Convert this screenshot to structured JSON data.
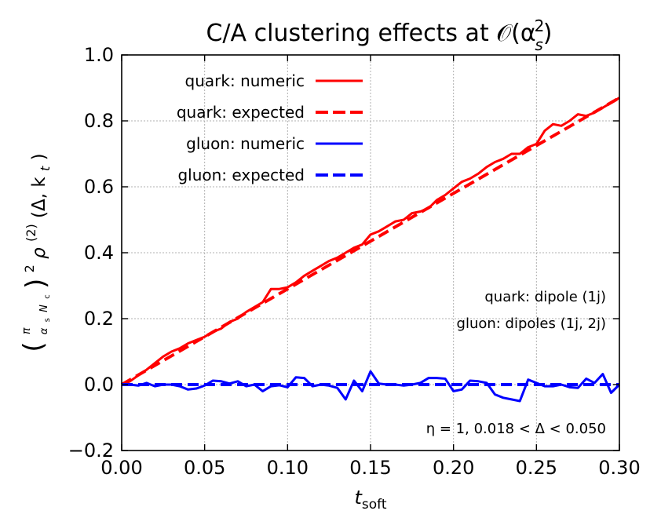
{
  "chart_data": {
    "type": "line",
    "title": "C/A clustering effects at 𝒪(α",
    "title_sup": "2",
    "title_sub": "s",
    "title_end": ")",
    "xlabel": "t",
    "xlabel_sub": "soft",
    "ylabel_main": "ρ",
    "ylabel_tail": "(Δ, k",
    "ylabel_sub": "t",
    "xlim": [
      0.0,
      0.3
    ],
    "ylim": [
      -0.2,
      1.0
    ],
    "xticks": [
      0.0,
      0.05,
      0.1,
      0.15,
      0.2,
      0.25,
      0.3
    ],
    "xtick_labels": [
      "0.00",
      "0.05",
      "0.10",
      "0.15",
      "0.20",
      "0.25",
      "0.30"
    ],
    "yticks": [
      -0.2,
      0.0,
      0.2,
      0.4,
      0.6,
      0.8,
      1.0
    ],
    "ytick_labels": [
      "−0.2",
      "0.0",
      "0.2",
      "0.4",
      "0.6",
      "0.8",
      "1.0"
    ],
    "grid": true,
    "legend_position": "top-left",
    "annotations": {
      "quark_dipole": "quark: dipole (1j)",
      "gluon_dipoles": "gluon: dipoles (1j, 2j)",
      "cut": "η = 1, 0.018 < Δ <  0.050"
    },
    "series": [
      {
        "name": "quark: numeric",
        "color": "#ff0000",
        "dash": "solid",
        "x": [
          0.0,
          0.005,
          0.01,
          0.015,
          0.02,
          0.025,
          0.03,
          0.035,
          0.04,
          0.045,
          0.05,
          0.055,
          0.06,
          0.065,
          0.07,
          0.075,
          0.08,
          0.085,
          0.09,
          0.095,
          0.1,
          0.105,
          0.11,
          0.115,
          0.12,
          0.125,
          0.13,
          0.135,
          0.14,
          0.145,
          0.15,
          0.155,
          0.16,
          0.165,
          0.17,
          0.175,
          0.18,
          0.185,
          0.19,
          0.195,
          0.2,
          0.205,
          0.21,
          0.215,
          0.22,
          0.225,
          0.23,
          0.235,
          0.24,
          0.245,
          0.25,
          0.255,
          0.26,
          0.265,
          0.27,
          0.275,
          0.28,
          0.285,
          0.29,
          0.295,
          0.3
        ],
        "y": [
          0.0,
          0.01,
          0.028,
          0.045,
          0.065,
          0.085,
          0.1,
          0.11,
          0.125,
          0.135,
          0.145,
          0.16,
          0.17,
          0.19,
          0.2,
          0.22,
          0.235,
          0.25,
          0.29,
          0.29,
          0.295,
          0.31,
          0.33,
          0.345,
          0.36,
          0.375,
          0.385,
          0.4,
          0.415,
          0.425,
          0.455,
          0.465,
          0.48,
          0.495,
          0.5,
          0.52,
          0.525,
          0.535,
          0.56,
          0.575,
          0.595,
          0.615,
          0.625,
          0.64,
          0.66,
          0.675,
          0.685,
          0.7,
          0.7,
          0.72,
          0.73,
          0.77,
          0.79,
          0.785,
          0.8,
          0.82,
          0.815,
          0.825,
          0.84,
          0.855,
          0.87
        ]
      },
      {
        "name": "quark: expected",
        "color": "#ff0000",
        "dash": "dashed",
        "x": [
          0.0,
          0.3
        ],
        "y": [
          0.0,
          0.87
        ]
      },
      {
        "name": "gluon: numeric",
        "color": "#0000ff",
        "dash": "solid",
        "x": [
          0.0,
          0.005,
          0.01,
          0.015,
          0.02,
          0.025,
          0.03,
          0.035,
          0.04,
          0.045,
          0.05,
          0.055,
          0.06,
          0.065,
          0.07,
          0.075,
          0.08,
          0.085,
          0.09,
          0.095,
          0.1,
          0.105,
          0.11,
          0.115,
          0.12,
          0.125,
          0.13,
          0.135,
          0.14,
          0.145,
          0.15,
          0.155,
          0.16,
          0.165,
          0.17,
          0.175,
          0.18,
          0.185,
          0.19,
          0.195,
          0.2,
          0.205,
          0.21,
          0.215,
          0.22,
          0.225,
          0.23,
          0.235,
          0.24,
          0.245,
          0.25,
          0.255,
          0.26,
          0.265,
          0.27,
          0.275,
          0.28,
          0.285,
          0.29,
          0.295,
          0.3
        ],
        "y": [
          0.0,
          0.0,
          -0.003,
          0.005,
          -0.005,
          0.0,
          0.0,
          -0.005,
          -0.015,
          -0.012,
          -0.003,
          0.012,
          0.01,
          0.003,
          0.01,
          -0.005,
          0.0,
          -0.02,
          -0.005,
          -0.002,
          -0.008,
          0.022,
          0.02,
          -0.005,
          0.0,
          -0.003,
          -0.01,
          -0.045,
          0.012,
          -0.02,
          0.04,
          0.003,
          0.0,
          0.0,
          -0.003,
          0.0,
          0.005,
          0.02,
          0.02,
          0.018,
          -0.02,
          -0.015,
          0.012,
          0.01,
          0.005,
          -0.03,
          -0.04,
          -0.045,
          -0.05,
          0.015,
          0.005,
          -0.005,
          -0.005,
          0.0,
          -0.008,
          -0.01,
          0.018,
          0.005,
          0.032,
          -0.025,
          0.0
        ]
      },
      {
        "name": "gluon: expected",
        "color": "#0000ff",
        "dash": "dashed",
        "x": [
          0.0,
          0.3
        ],
        "y": [
          0.0,
          0.0
        ]
      }
    ]
  }
}
